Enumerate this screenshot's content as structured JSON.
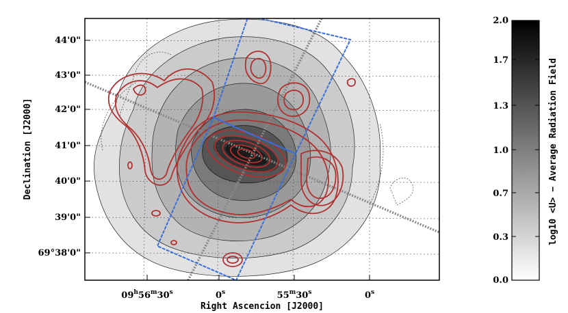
{
  "map": {
    "x_axis_label": "Right Ascencion [J2000]",
    "y_axis_label": "Declination [J2000]",
    "x_ticks": [
      "09h56m30s",
      "0s",
      "55m30s",
      "0s"
    ],
    "y_ticks": [
      "44'0\"",
      "43'0\"",
      "42'0\"",
      "41'0\"",
      "40'0\"",
      "39'0\"",
      "69°38'0\""
    ],
    "contour_color": "#b03030",
    "box_color": "#3a6fd8"
  },
  "colorbar": {
    "label": "log10 <U> − Average Radiation Field",
    "ticks": [
      "2.0",
      "1.7",
      "1.3",
      "1.0",
      "0.7",
      "0.3",
      "0.0"
    ],
    "range": [
      0.0,
      2.0
    ]
  }
}
